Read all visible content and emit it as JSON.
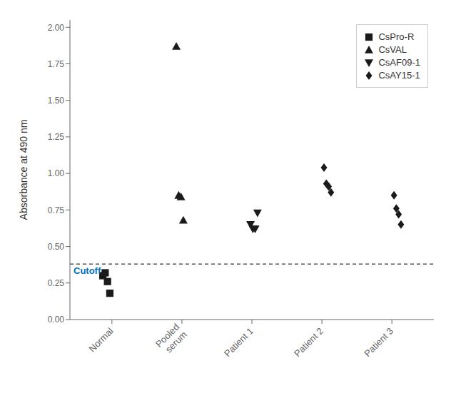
{
  "chart_data": {
    "type": "scatter",
    "categories": [
      "Normal",
      "Pooled\nserum",
      "Patient 1",
      "Patient 2",
      "Patient 3"
    ],
    "ylabel": "Absorbance at 490 nm",
    "ylim": [
      0,
      2.05
    ],
    "yticks": [
      {
        "value": 0,
        "label": "0.00"
      },
      {
        "value": 0.25,
        "label": "0.25"
      },
      {
        "value": 0.5,
        "label": "0.50"
      },
      {
        "value": 0.75,
        "label": "0.75"
      },
      {
        "value": 1,
        "label": "1.00"
      },
      {
        "value": 1.25,
        "label": "1.25"
      },
      {
        "value": 1.5,
        "label": "1.50"
      },
      {
        "value": 1.75,
        "label": "1.75"
      },
      {
        "value": 2,
        "label": "2.00"
      }
    ],
    "grid": false,
    "legend": "upper right",
    "series": [
      {
        "name": "CsPro-R",
        "marker": "square",
        "color": "#1a1a1a",
        "values": [
          [
            0.3,
            0.32,
            0.26,
            0.18
          ],
          [],
          [],
          [],
          []
        ]
      },
      {
        "name": "CsVAL",
        "marker": "triangle",
        "color": "#1a1a1a",
        "values": [
          [],
          [
            1.87,
            0.85,
            0.84,
            0.68
          ],
          [],
          [],
          []
        ]
      },
      {
        "name": "CsAF09-1",
        "marker": "triangle_down",
        "color": "#1a1a1a",
        "values": [
          [],
          [],
          [
            0.65,
            0.62,
            0.62,
            0.73
          ],
          [],
          []
        ]
      },
      {
        "name": "CsAY15-1",
        "marker": "diamond",
        "color": "#1a1a1a",
        "values": [
          [],
          [],
          [],
          [
            1.04,
            0.93,
            0.91,
            0.87
          ],
          [
            0.85,
            0.76,
            0.72,
            0.65
          ]
        ]
      }
    ],
    "annotations": [
      {
        "text": "Cutoff",
        "y": 0.38,
        "color": "#0070c0",
        "line_style": "dashed"
      }
    ]
  }
}
